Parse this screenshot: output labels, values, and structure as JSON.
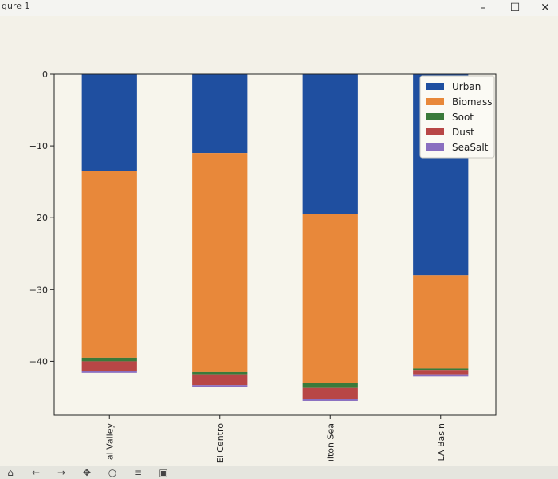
{
  "window": {
    "title": "gure 1",
    "minimize_glyph": "–",
    "maximize_glyph": "☐",
    "close_glyph": "✕"
  },
  "toolbar": {
    "icons": [
      "home-icon",
      "back-icon",
      "forward-icon",
      "pan-icon",
      "zoom-icon",
      "configure-icon",
      "save-icon"
    ]
  },
  "chart_data": {
    "type": "bar",
    "stacked": true,
    "categories": [
      "al Valley",
      "El Centro",
      "ilton Sea",
      "LA Basin"
    ],
    "category_labels_display": [
      "al Valley",
      "El Centro",
      "ılton Sea",
      "LA Basin"
    ],
    "series": [
      {
        "name": "Urban",
        "color": "#1f4fa0",
        "values": [
          -13.5,
          -11.0,
          -19.5,
          -28.0
        ]
      },
      {
        "name": "Biomass",
        "color": "#e8883a",
        "values": [
          -26.0,
          -30.5,
          -23.5,
          -13.0
        ]
      },
      {
        "name": "Soot",
        "color": "#3a7a3a",
        "values": [
          -0.5,
          -0.3,
          -0.7,
          -0.2
        ]
      },
      {
        "name": "Dust",
        "color": "#b84646",
        "values": [
          -1.3,
          -1.5,
          -1.5,
          -0.6
        ]
      },
      {
        "name": "SeaSalt",
        "color": "#8a6fc0",
        "values": [
          -0.3,
          -0.3,
          -0.3,
          -0.3
        ]
      }
    ],
    "yticks": [
      0,
      -10,
      -20,
      -30,
      -40
    ],
    "ytick_labels": [
      "0",
      "−10",
      "−20",
      "−30",
      "−40"
    ],
    "ylim": [
      -47.5,
      0
    ],
    "legend_position": "upper right",
    "grid": false
  }
}
